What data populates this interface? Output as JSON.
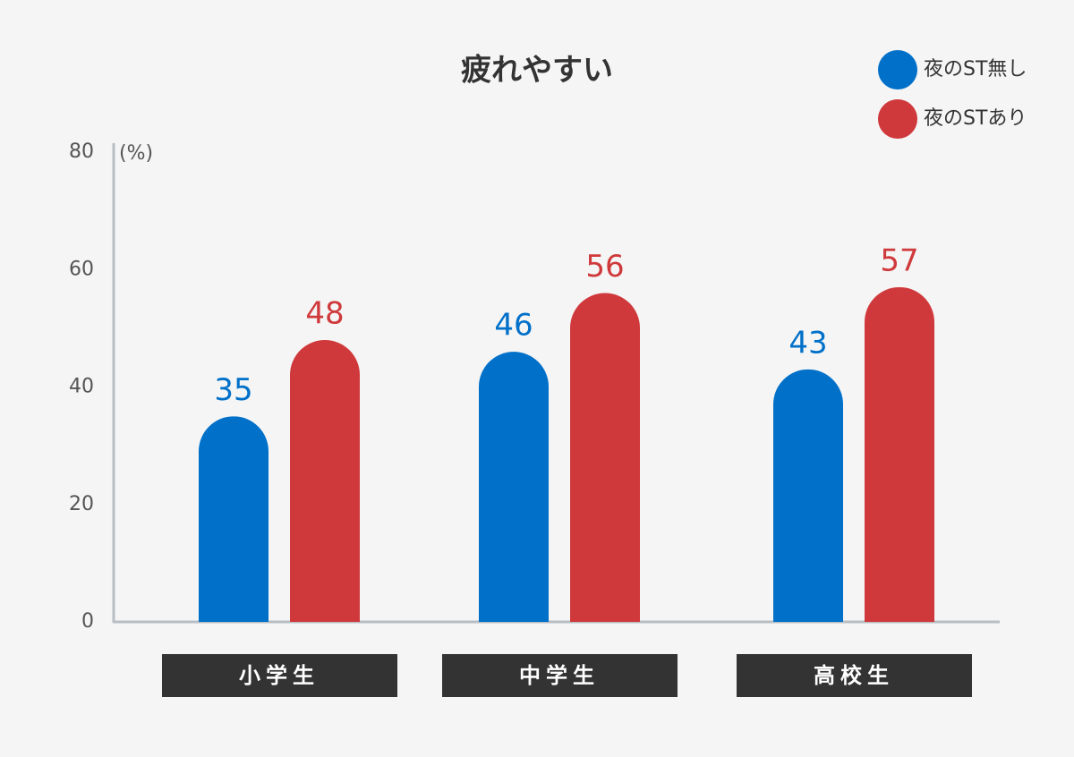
{
  "chart_data": {
    "type": "bar",
    "title": "疲れやすい",
    "ylabel": "(%)",
    "categories": [
      "小学生",
      "中学生",
      "高校生"
    ],
    "series": [
      {
        "name": "夜のST無し",
        "color": "#0070c9",
        "values": [
          35,
          46,
          43
        ]
      },
      {
        "name": "夜のSTあり",
        "color": "#d0393b",
        "values": [
          48,
          56,
          57
        ]
      }
    ],
    "ylim": [
      0,
      80
    ],
    "yticks": [
      0,
      20,
      40,
      60,
      80
    ],
    "grid": false,
    "legend": "top-right"
  }
}
